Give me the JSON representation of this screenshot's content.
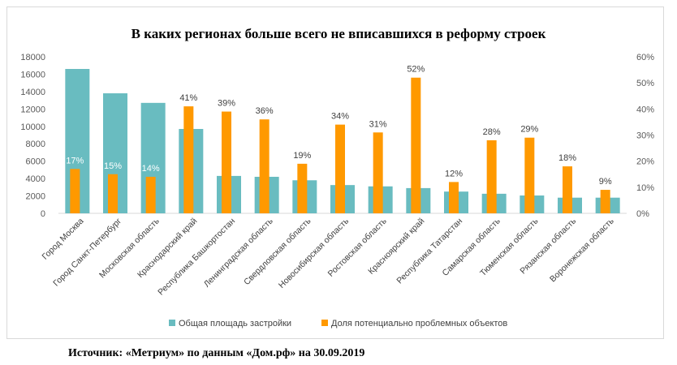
{
  "chart_data": {
    "type": "bar",
    "title": "В каких регионах больше всего не вписавшихся в реформу строек",
    "categories": [
      "Город Москва",
      "Город Санкт-Петербург",
      "Московская область",
      "Краснодарский край",
      "Республика Башкортостан",
      "Ленинградская область",
      "Свердловская область",
      "Новосибирская область",
      "Ростовская область",
      "Красноярский край",
      "Республика Татарстан",
      "Самарская область",
      "Тюменская область",
      "Рязанская область",
      "Воронежская область"
    ],
    "series": [
      {
        "name": "Общая площадь застройки",
        "axis": "left",
        "color": "#69bcc0",
        "values": [
          16600,
          13800,
          12700,
          9700,
          4300,
          4200,
          3800,
          3250,
          3100,
          2900,
          2500,
          2250,
          2050,
          1800,
          1800
        ]
      },
      {
        "name": "Доля потенциально проблемных объектов",
        "axis": "right",
        "color": "#ff9900",
        "values": [
          17,
          15,
          14,
          41,
          39,
          36,
          19,
          34,
          31,
          52,
          12,
          28,
          29,
          18,
          9
        ],
        "labels": [
          "17%",
          "15%",
          "14%",
          "41%",
          "39%",
          "36%",
          "19%",
          "34%",
          "31%",
          "52%",
          "12%",
          "28%",
          "29%",
          "18%",
          "9%"
        ]
      }
    ],
    "y_left": {
      "min": 0,
      "max": 18000,
      "ticks": [
        "0",
        "2000",
        "4000",
        "6000",
        "8000",
        "10000",
        "12000",
        "14000",
        "16000",
        "18000"
      ]
    },
    "y_right": {
      "min": 0,
      "max": 60,
      "ticks": [
        "0%",
        "10%",
        "20%",
        "30%",
        "40%",
        "50%",
        "60%"
      ]
    },
    "grid": false,
    "legend_position": "bottom"
  },
  "source_text": "Источник: «Метриум» по данным «Дом.рф» на 30.09.2019"
}
